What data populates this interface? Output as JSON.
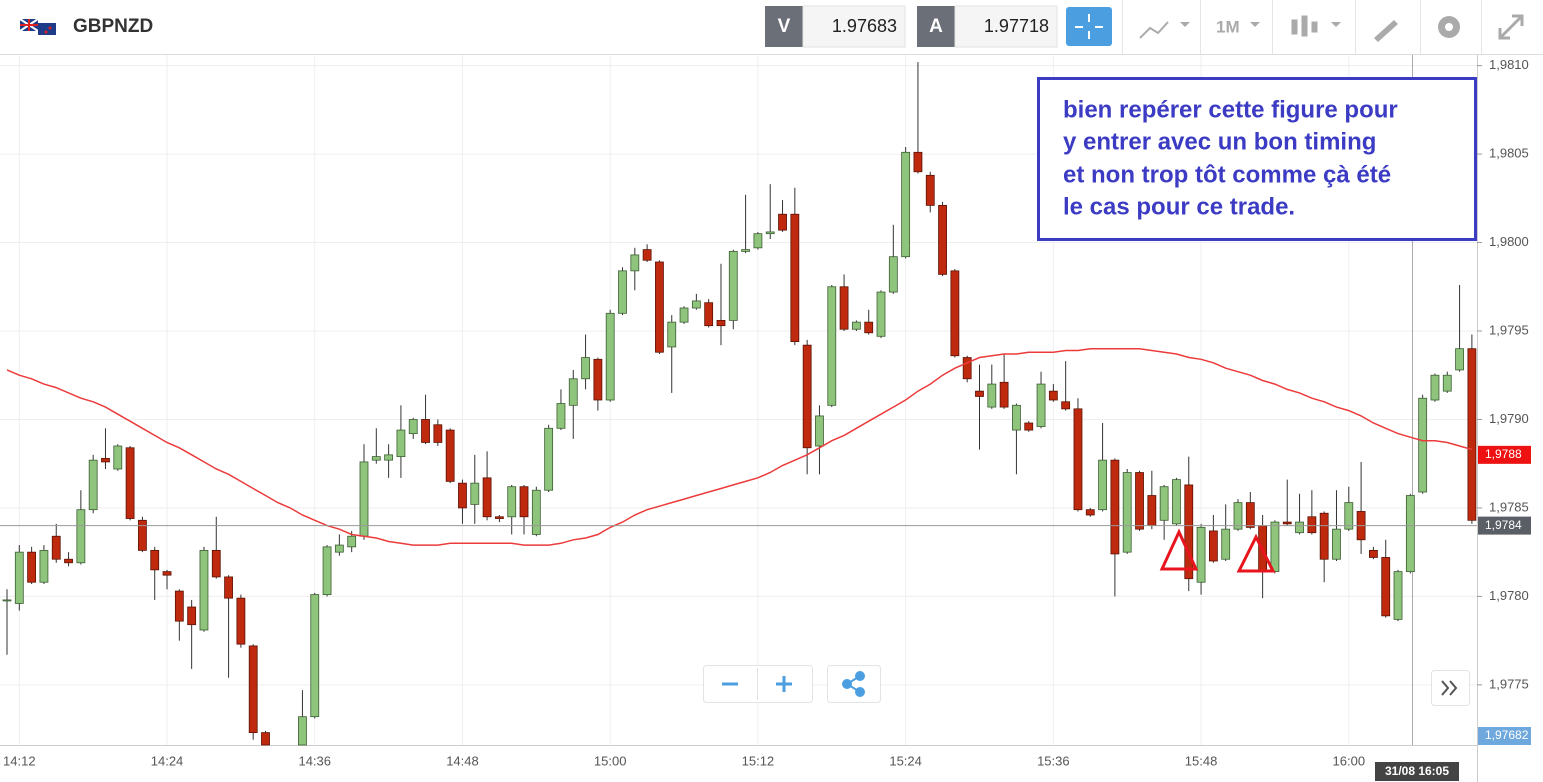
{
  "toolbar": {
    "symbol": "GBPNZD",
    "sell_label": "V",
    "sell_price": "1.97683",
    "buy_label": "A",
    "buy_price": "1.97718",
    "timeframe": "1M"
  },
  "annotation": {
    "lines": [
      "bien repérer cette figure pour",
      "y entrer avec un bon timing",
      "et non trop tôt comme çà été",
      "le cas pour ce trade."
    ]
  },
  "chart_data": {
    "type": "candlestick",
    "categories": [
      null,
      "14:12",
      null,
      null,
      null,
      null,
      null,
      null,
      null,
      null,
      null,
      null,
      null,
      "14:24",
      null,
      null,
      null,
      null,
      null,
      null,
      null,
      null,
      null,
      null,
      null,
      "14:36",
      null,
      null,
      null,
      null,
      null,
      null,
      null,
      null,
      null,
      null,
      null,
      "14:48",
      null,
      null,
      null,
      null,
      null,
      null,
      null,
      null,
      null,
      null,
      null,
      "15:00",
      null,
      null,
      null,
      null,
      null,
      null,
      null,
      null,
      null,
      null,
      null,
      "15:12",
      null,
      null,
      null,
      null,
      null,
      null,
      null,
      null,
      null,
      null,
      null,
      "15:24",
      null,
      null,
      null,
      null,
      null,
      null,
      null,
      null,
      null,
      null,
      null,
      "15:36",
      null,
      null,
      null,
      null,
      null,
      null,
      null,
      null,
      null,
      null,
      null,
      "15:48",
      null,
      null,
      null,
      null,
      null,
      null,
      null,
      null,
      null,
      null,
      null,
      "16:00",
      null,
      null,
      null,
      null,
      null,
      null,
      null,
      null,
      null,
      null
    ],
    "open": [
      1.97798,
      1.97796,
      1.97825,
      1.97808,
      1.97834,
      1.97821,
      1.97819,
      1.97849,
      1.97878,
      1.97872,
      1.97884,
      1.97843,
      1.97826,
      1.97814,
      1.97803,
      1.97794,
      1.97781,
      1.97826,
      1.97811,
      1.97799,
      1.97772,
      1.97723,
      null,
      null,
      1.97716,
      1.97732,
      1.97801,
      1.97825,
      1.97828,
      1.97834,
      1.97877,
      1.97877,
      1.97879,
      1.97892,
      1.979,
      1.97897,
      1.97894,
      1.97864,
      1.97852,
      1.97867,
      1.97845,
      1.97845,
      1.97862,
      1.97835,
      1.9786,
      1.97895,
      1.97908,
      1.97923,
      1.97934,
      1.97911,
      1.9796,
      1.97984,
      1.97996,
      1.97989,
      1.97941,
      1.97955,
      1.97963,
      1.97966,
      1.97956,
      1.97956,
      1.97995,
      1.97997,
      1.98005,
      1.98016,
      1.98016,
      1.97942,
      1.97885,
      1.97908,
      1.97975,
      1.97951,
      1.97955,
      1.97947,
      1.97972,
      1.97992,
      1.98051,
      1.98038,
      1.98021,
      1.97984,
      1.97935,
      1.97916,
      1.97907,
      1.97921,
      1.97894,
      1.97898,
      1.97896,
      1.97916,
      1.9791,
      1.97906,
      1.97849,
      1.97849,
      1.97877,
      1.97825,
      1.9787,
      1.97857,
      1.97843,
      1.97841,
      1.97863,
      1.97808,
      1.97837,
      1.97821,
      1.97838,
      1.97853,
      1.9784,
      1.97814,
      1.97842,
      1.97836,
      1.97845,
      1.97847,
      1.97821,
      1.97838,
      1.97848,
      1.97826,
      1.97822,
      1.97787,
      1.97814,
      1.97859,
      1.97911,
      1.97916,
      1.97928,
      1.9794
    ],
    "high": [
      1.97804,
      1.97829,
      1.97828,
      1.97829,
      1.97841,
      1.97825,
      1.9786,
      1.9788,
      1.97895,
      1.97886,
      1.97885,
      1.97845,
      1.97828,
      1.97815,
      1.97804,
      1.97798,
      1.97828,
      1.97845,
      1.97812,
      1.97801,
      1.97773,
      1.97724,
      null,
      null,
      1.97747,
      1.97802,
      1.97829,
      1.97835,
      1.97837,
      1.97886,
      1.97895,
      1.97886,
      1.97908,
      1.97901,
      1.97914,
      1.979,
      1.97895,
      1.97866,
      1.9788,
      1.97882,
      1.97846,
      1.97863,
      1.97863,
      1.97862,
      1.97897,
      1.97917,
      1.97928,
      1.97948,
      1.97935,
      1.97962,
      1.97986,
      1.97997,
      1.97999,
      1.9799,
      1.97959,
      1.97964,
      1.97971,
      1.97968,
      1.97988,
      1.97996,
      1.98027,
      1.98006,
      1.98033,
      1.98024,
      1.98031,
      1.97945,
      1.97908,
      1.97976,
      1.97982,
      1.97956,
      1.97962,
      1.97973,
      1.9801,
      1.98054,
      1.98102,
      1.9804,
      1.98023,
      1.97985,
      1.97936,
      1.97931,
      1.97931,
      1.97937,
      1.97909,
      1.97899,
      1.97927,
      1.9792,
      1.97933,
      1.97912,
      1.9785,
      1.97898,
      1.97878,
      1.97872,
      1.97871,
      1.97871,
      1.97863,
      1.97867,
      1.97879,
      1.97841,
      1.97846,
      1.97852,
      1.97855,
      1.97859,
      1.97846,
      1.97843,
      1.97866,
      1.97858,
      1.9786,
      1.97848,
      1.9786,
      1.97862,
      1.97876,
      1.97828,
      1.97832,
      1.97815,
      1.97858,
      1.97914,
      1.97926,
      1.97927,
      1.97976,
      1.97948
    ],
    "low": [
      1.97767,
      1.97792,
      1.97807,
      1.97807,
      1.97819,
      1.97817,
      1.97818,
      1.97847,
      1.97872,
      1.97871,
      1.97843,
      1.97825,
      1.97798,
      1.97804,
      1.97775,
      1.97759,
      1.9778,
      1.9781,
      1.97754,
      1.97771,
      1.97719,
      1.97716,
      null,
      null,
      1.97716,
      1.97731,
      1.978,
      1.97823,
      1.97825,
      1.97832,
      1.97875,
      1.97867,
      1.97867,
      1.97889,
      1.97886,
      1.97885,
      1.97864,
      1.97841,
      1.97841,
      1.97843,
      1.97842,
      1.97835,
      1.97835,
      1.97834,
      1.97859,
      1.97894,
      1.97889,
      1.97917,
      1.97905,
      1.9791,
      1.97959,
      1.97973,
      1.97989,
      1.97937,
      1.97915,
      1.97954,
      1.97962,
      1.97952,
      1.97942,
      1.97951,
      1.97994,
      1.97996,
      1.98002,
      1.98006,
      1.97942,
      1.97869,
      1.97869,
      1.97907,
      1.9795,
      1.9795,
      1.97948,
      1.97946,
      1.97971,
      1.97991,
      1.98039,
      1.98017,
      1.97981,
      1.97935,
      1.97921,
      1.97883,
      1.97906,
      1.97906,
      1.97869,
      1.97893,
      1.97895,
      1.9791,
      1.97905,
      1.97848,
      1.97845,
      1.97848,
      1.978,
      1.97824,
      1.97837,
      1.97838,
      1.97832,
      1.9784,
      1.97803,
      1.97801,
      1.97819,
      1.9782,
      1.97837,
      1.97838,
      1.97799,
      1.97813,
      1.9784,
      1.97835,
      1.97835,
      1.97808,
      1.9782,
      1.97837,
      1.97824,
      1.97821,
      1.97788,
      1.97786,
      1.97813,
      1.97858,
      1.9791,
      1.97915,
      1.97927,
      1.97841
    ],
    "close": [
      1.97798,
      1.97825,
      1.97808,
      1.97826,
      1.97821,
      1.97819,
      1.97849,
      1.97877,
      1.97876,
      1.97885,
      1.97844,
      1.97826,
      1.97815,
      1.97812,
      1.97786,
      1.97784,
      1.97826,
      1.97811,
      1.97799,
      1.97773,
      1.97723,
      1.97716,
      null,
      null,
      1.97732,
      1.97801,
      1.97828,
      1.97829,
      1.97834,
      1.97876,
      1.97879,
      1.9788,
      1.97894,
      1.979,
      1.97887,
      1.97887,
      1.97865,
      1.9785,
      1.97864,
      1.97845,
      1.97844,
      1.97862,
      1.97845,
      1.9786,
      1.97895,
      1.97909,
      1.97923,
      1.97935,
      1.97911,
      1.9796,
      1.97984,
      1.97993,
      1.9799,
      1.97938,
      1.97955,
      1.97963,
      1.97967,
      1.97953,
      1.97953,
      1.97995,
      1.97996,
      1.98005,
      1.98006,
      1.98007,
      1.97944,
      1.97884,
      1.97902,
      1.97975,
      1.97951,
      1.97955,
      1.97949,
      1.97972,
      1.97992,
      1.98051,
      1.9804,
      1.98021,
      1.97982,
      1.97936,
      1.97923,
      1.97913,
      1.9792,
      1.97907,
      1.97908,
      1.97894,
      1.9792,
      1.97911,
      1.97906,
      1.97849,
      1.97846,
      1.97877,
      1.97824,
      1.9787,
      1.97838,
      1.9784,
      1.97862,
      1.97866,
      1.9781,
      1.97839,
      1.9782,
      1.97838,
      1.97853,
      1.97839,
      1.97814,
      1.97842,
      1.97841,
      1.97842,
      1.97836,
      1.97821,
      1.97838,
      1.97853,
      1.97832,
      1.97822,
      1.97789,
      1.97814,
      1.97857,
      1.97912,
      1.97925,
      1.97925,
      1.9794,
      1.97843
    ],
    "up_color": "#8fc47c",
    "down_color": "#bf2a0f",
    "ma": {
      "color": "#ec3b3b",
      "values": [
        1.97928,
        1.97925,
        1.97923,
        1.9792,
        1.97918,
        1.97915,
        1.97912,
        1.9791,
        1.97907,
        1.97903,
        1.97899,
        1.97895,
        1.97891,
        1.97887,
        1.97884,
        1.9788,
        1.97876,
        1.97872,
        1.97869,
        1.97865,
        1.97861,
        1.97857,
        1.97853,
        1.9785,
        1.97846,
        1.97843,
        1.9784,
        1.97838,
        1.97835,
        1.97834,
        1.97833,
        1.97831,
        1.9783,
        1.97829,
        1.97829,
        1.97829,
        1.9783,
        1.9783,
        1.9783,
        1.9783,
        1.9783,
        1.9783,
        1.97829,
        1.97829,
        1.97829,
        1.9783,
        1.97832,
        1.97833,
        1.97835,
        1.97839,
        1.97842,
        1.97846,
        1.97849,
        1.97851,
        1.97853,
        1.97855,
        1.97857,
        1.97859,
        1.97861,
        1.97863,
        1.97865,
        1.97867,
        1.9787,
        1.97874,
        1.97877,
        1.9788,
        1.97884,
        1.97888,
        1.97891,
        1.97895,
        1.97899,
        1.97903,
        1.97907,
        1.97911,
        1.97916,
        1.9792,
        1.97925,
        1.97929,
        1.97932,
        1.97935,
        1.97936,
        1.97937,
        1.97937,
        1.97938,
        1.97938,
        1.97938,
        1.97939,
        1.97939,
        1.9794,
        1.9794,
        1.9794,
        1.9794,
        1.9794,
        1.97939,
        1.97938,
        1.97937,
        1.97935,
        1.97934,
        1.97932,
        1.97929,
        1.97927,
        1.97925,
        1.97922,
        1.9792,
        1.97917,
        1.97915,
        1.97912,
        1.9791,
        1.97907,
        1.97905,
        1.97902,
        1.97898,
        1.97895,
        1.97892,
        1.9789,
        1.97888,
        1.97888,
        1.97887,
        1.97885,
        1.97883
      ]
    },
    "ylim": [
      1.97716,
      1.98106
    ],
    "yticks": [
      {
        "value": 1.981,
        "label": "1,9810"
      },
      {
        "value": 1.9805,
        "label": "1,9805"
      },
      {
        "value": 1.98,
        "label": "1,9800"
      },
      {
        "value": 1.9795,
        "label": "1,9795"
      },
      {
        "value": 1.979,
        "label": "1,9790"
      },
      {
        "value": 1.9785,
        "label": "1,9785"
      },
      {
        "value": 1.978,
        "label": "1,9780"
      },
      {
        "value": 1.9775,
        "label": "1,9775"
      }
    ],
    "grid": true,
    "price_labels": [
      {
        "value": 1.9788,
        "label": "1,9788",
        "color": "#ee1111",
        "line": false
      },
      {
        "value": 1.9784,
        "label": "1,9784",
        "color": "#5a5f66",
        "line": true
      },
      {
        "value": 1.97682,
        "label": "1,97682",
        "color": "#6fa8dc",
        "line": false
      }
    ],
    "crosshair_label": "31/08 16:05"
  }
}
